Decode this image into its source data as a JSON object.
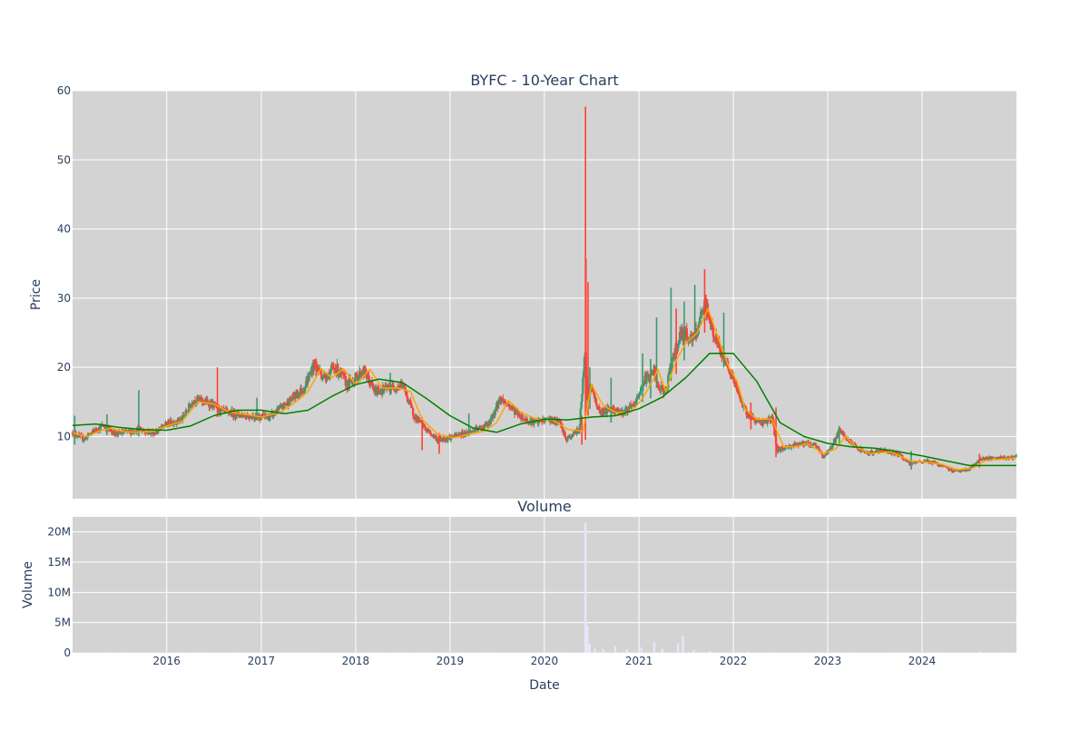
{
  "chart_data": [
    {
      "type": "candlestick",
      "title": "BYFC - 10-Year Chart",
      "ylabel": "Price",
      "xlabel": "",
      "x_range": [
        "2015-01-02",
        "2024-12-31"
      ],
      "ylim": [
        1,
        60
      ],
      "y_ticks": [
        10,
        20,
        30,
        40,
        50,
        60
      ],
      "grid": true,
      "plot_background": "#d3d3d3",
      "up_color": "#3d9970",
      "down_color": "#ff4136",
      "price_path": [
        [
          "2015-01-02",
          10.6
        ],
        [
          "2015-02-15",
          9.6
        ],
        [
          "2015-03-15",
          10.5
        ],
        [
          "2015-05-01",
          11.6
        ],
        [
          "2015-06-15",
          10.4
        ],
        [
          "2015-08-01",
          10.6
        ],
        [
          "2015-09-15",
          11.0
        ],
        [
          "2015-11-15",
          10.5
        ],
        [
          "2016-01-01",
          11.8
        ],
        [
          "2016-03-01",
          12.5
        ],
        [
          "2016-04-15",
          15.4
        ],
        [
          "2016-06-15",
          14.8
        ],
        [
          "2016-08-01",
          13.6
        ],
        [
          "2016-10-01",
          13.2
        ],
        [
          "2016-12-01",
          12.9
        ],
        [
          "2017-02-01",
          12.8
        ],
        [
          "2017-03-15",
          14.0
        ],
        [
          "2017-05-01",
          15.5
        ],
        [
          "2017-06-15",
          17.0
        ],
        [
          "2017-07-25",
          20.5
        ],
        [
          "2017-09-01",
          18.5
        ],
        [
          "2017-10-15",
          20.0
        ],
        [
          "2017-12-01",
          17.5
        ],
        [
          "2018-02-01",
          19.5
        ],
        [
          "2018-03-15",
          16.5
        ],
        [
          "2018-05-15",
          17.0
        ],
        [
          "2018-07-01",
          17.5
        ],
        [
          "2018-08-15",
          13.0
        ],
        [
          "2018-10-01",
          11.0
        ],
        [
          "2018-11-15",
          9.5
        ],
        [
          "2019-01-15",
          10.0
        ],
        [
          "2019-03-01",
          10.5
        ],
        [
          "2019-04-15",
          11.0
        ],
        [
          "2019-06-01",
          11.8
        ],
        [
          "2019-07-15",
          15.5
        ],
        [
          "2019-09-01",
          14.0
        ],
        [
          "2019-10-15",
          12.5
        ],
        [
          "2019-12-01",
          12.0
        ],
        [
          "2020-01-15",
          12.5
        ],
        [
          "2020-03-01",
          12.0
        ],
        [
          "2020-03-25",
          9.5
        ],
        [
          "2020-05-15",
          11.0
        ],
        [
          "2020-06-08",
          23.0
        ],
        [
          "2020-06-12",
          16.0
        ],
        [
          "2020-07-01",
          17.0
        ],
        [
          "2020-08-01",
          13.5
        ],
        [
          "2020-09-15",
          14.0
        ],
        [
          "2020-11-01",
          13.5
        ],
        [
          "2020-12-15",
          14.5
        ],
        [
          "2021-01-20",
          18.0
        ],
        [
          "2021-03-01",
          19.5
        ],
        [
          "2021-03-15",
          17.0
        ],
        [
          "2021-04-15",
          16.5
        ],
        [
          "2021-05-15",
          22.0
        ],
        [
          "2021-06-15",
          25.0
        ],
        [
          "2021-08-01",
          24.0
        ],
        [
          "2021-09-15",
          29.0
        ],
        [
          "2021-10-15",
          25.0
        ],
        [
          "2021-11-15",
          22.0
        ],
        [
          "2021-12-15",
          20.0
        ],
        [
          "2022-02-01",
          15.0
        ],
        [
          "2022-03-01",
          13.0
        ],
        [
          "2022-04-15",
          12.0
        ],
        [
          "2022-06-01",
          12.5
        ],
        [
          "2022-06-20",
          8.0
        ],
        [
          "2022-08-01",
          8.5
        ],
        [
          "2022-09-15",
          9.0
        ],
        [
          "2022-11-15",
          8.8
        ],
        [
          "2022-12-15",
          7.0
        ],
        [
          "2023-01-15",
          8.5
        ],
        [
          "2023-02-15",
          10.8
        ],
        [
          "2023-04-01",
          9.0
        ],
        [
          "2023-06-01",
          7.5
        ],
        [
          "2023-08-01",
          8.0
        ],
        [
          "2023-10-01",
          7.5
        ],
        [
          "2023-11-15",
          6.0
        ],
        [
          "2024-01-15",
          6.5
        ],
        [
          "2024-03-01",
          6.0
        ],
        [
          "2024-05-01",
          5.0
        ],
        [
          "2024-07-01",
          5.2
        ],
        [
          "2024-08-15",
          6.8
        ],
        [
          "2024-10-01",
          6.8
        ],
        [
          "2024-12-31",
          7.0
        ]
      ],
      "price_spikes": [
        [
          "2015-01-10",
          8.8,
          13.0,
          "up"
        ],
        [
          "2015-05-15",
          10.2,
          13.2,
          "up"
        ],
        [
          "2015-09-15",
          10.0,
          16.7,
          "up"
        ],
        [
          "2016-07-15",
          12.8,
          20.0,
          "down"
        ],
        [
          "2016-12-15",
          12.5,
          15.6,
          "up"
        ],
        [
          "2017-08-01",
          18.5,
          21.3,
          "down"
        ],
        [
          "2018-05-15",
          16.0,
          19.2,
          "up"
        ],
        [
          "2018-09-15",
          8.0,
          12.8,
          "down"
        ],
        [
          "2018-11-20",
          7.5,
          10.5,
          "down"
        ],
        [
          "2019-03-15",
          10.0,
          13.3,
          "up"
        ],
        [
          "2020-05-25",
          8.8,
          13.0,
          "down"
        ],
        [
          "2020-06-08",
          9.5,
          57.7,
          "down"
        ],
        [
          "2020-06-10",
          14.0,
          35.7,
          "down"
        ],
        [
          "2020-06-18",
          13.0,
          32.3,
          "down"
        ],
        [
          "2020-06-25",
          14.0,
          20.0,
          "up"
        ],
        [
          "2020-09-15",
          12.0,
          18.5,
          "up"
        ],
        [
          "2021-01-15",
          15.0,
          22.0,
          "up"
        ],
        [
          "2021-02-15",
          15.5,
          21.2,
          "up"
        ],
        [
          "2021-03-10",
          17.0,
          27.2,
          "up"
        ],
        [
          "2021-05-05",
          18.0,
          31.5,
          "up"
        ],
        [
          "2021-05-25",
          19.0,
          28.5,
          "down"
        ],
        [
          "2021-06-25",
          21.0,
          29.5,
          "up"
        ],
        [
          "2021-08-05",
          24.0,
          31.9,
          "up"
        ],
        [
          "2021-09-12",
          25.0,
          34.2,
          "down"
        ],
        [
          "2021-11-25",
          20.0,
          27.9,
          "up"
        ],
        [
          "2022-03-10",
          11.0,
          14.9,
          "down"
        ],
        [
          "2022-06-15",
          7.0,
          14.2,
          "down"
        ],
        [
          "2023-02-15",
          9.0,
          11.5,
          "up"
        ],
        [
          "2023-11-20",
          5.2,
          7.9,
          "up"
        ],
        [
          "2024-08-10",
          5.5,
          7.5,
          "down"
        ]
      ],
      "sma_50_path": [
        [
          "2015-01-02",
          10.5
        ],
        [
          "2015-03-01",
          10.0
        ],
        [
          "2015-04-15",
          10.8
        ],
        [
          "2015-06-01",
          11.2
        ],
        [
          "2015-07-15",
          10.7
        ],
        [
          "2015-09-01",
          10.6
        ],
        [
          "2015-11-01",
          10.7
        ],
        [
          "2016-01-01",
          11.5
        ],
        [
          "2016-03-01",
          12.2
        ],
        [
          "2016-05-01",
          15.0
        ],
        [
          "2016-07-01",
          14.7
        ],
        [
          "2016-09-01",
          13.5
        ],
        [
          "2016-11-01",
          13.2
        ],
        [
          "2017-01-01",
          12.8
        ],
        [
          "2017-03-15",
          13.5
        ],
        [
          "2017-05-15",
          15.0
        ],
        [
          "2017-07-01",
          16.5
        ],
        [
          "2017-08-20",
          19.8
        ],
        [
          "2017-10-01",
          18.5
        ],
        [
          "2017-11-15",
          19.8
        ],
        [
          "2018-01-01",
          17.5
        ],
        [
          "2018-02-25",
          19.7
        ],
        [
          "2018-04-15",
          17.0
        ],
        [
          "2018-06-15",
          17.0
        ],
        [
          "2018-08-01",
          16.5
        ],
        [
          "2018-09-15",
          12.5
        ],
        [
          "2018-11-15",
          10.3
        ],
        [
          "2019-01-15",
          9.8
        ],
        [
          "2019-03-15",
          10.3
        ],
        [
          "2019-05-15",
          10.8
        ],
        [
          "2019-06-30",
          12.0
        ],
        [
          "2019-08-15",
          15.2
        ],
        [
          "2019-10-01",
          13.5
        ],
        [
          "2019-12-01",
          12.5
        ],
        [
          "2020-02-01",
          12.4
        ],
        [
          "2020-04-01",
          11.0
        ],
        [
          "2020-05-30",
          10.8
        ],
        [
          "2020-07-01",
          17.5
        ],
        [
          "2020-08-15",
          14.5
        ],
        [
          "2020-10-01",
          13.5
        ],
        [
          "2020-12-01",
          13.5
        ],
        [
          "2021-01-15",
          15.5
        ],
        [
          "2021-03-01",
          18.5
        ],
        [
          "2021-03-15",
          19.7
        ],
        [
          "2021-04-15",
          16.5
        ],
        [
          "2021-05-25",
          21.0
        ],
        [
          "2021-07-01",
          23.5
        ],
        [
          "2021-08-15",
          25.0
        ],
        [
          "2021-09-25",
          28.5
        ],
        [
          "2021-11-01",
          24.5
        ],
        [
          "2021-12-15",
          20.0
        ],
        [
          "2022-01-15",
          18.0
        ],
        [
          "2022-02-15",
          14.0
        ],
        [
          "2022-04-01",
          12.5
        ],
        [
          "2022-05-30",
          12.5
        ],
        [
          "2022-07-15",
          8.5
        ],
        [
          "2022-09-01",
          8.5
        ],
        [
          "2022-10-15",
          9.0
        ],
        [
          "2022-12-15",
          7.5
        ],
        [
          "2023-02-01",
          8.2
        ],
        [
          "2023-03-10",
          10.0
        ],
        [
          "2023-04-20",
          8.5
        ],
        [
          "2023-06-15",
          7.5
        ],
        [
          "2023-09-01",
          7.8
        ],
        [
          "2023-11-15",
          6.5
        ],
        [
          "2024-01-15",
          6.3
        ],
        [
          "2024-03-15",
          6.0
        ],
        [
          "2024-05-15",
          5.2
        ],
        [
          "2024-07-15",
          5.4
        ],
        [
          "2024-09-01",
          6.5
        ],
        [
          "2024-12-31",
          6.9
        ]
      ],
      "sma_200_path": [
        [
          "2015-01-02",
          11.6
        ],
        [
          "2015-04-01",
          11.8
        ],
        [
          "2015-07-01",
          11.3
        ],
        [
          "2015-10-01",
          11.0
        ],
        [
          "2016-01-01",
          10.9
        ],
        [
          "2016-04-01",
          11.5
        ],
        [
          "2016-07-01",
          13.0
        ],
        [
          "2016-10-01",
          13.8
        ],
        [
          "2017-01-01",
          13.8
        ],
        [
          "2017-04-01",
          13.3
        ],
        [
          "2017-07-01",
          13.8
        ],
        [
          "2017-10-01",
          15.8
        ],
        [
          "2018-01-01",
          17.5
        ],
        [
          "2018-04-01",
          18.3
        ],
        [
          "2018-07-01",
          17.8
        ],
        [
          "2018-10-01",
          15.5
        ],
        [
          "2019-01-01",
          13.0
        ],
        [
          "2019-04-01",
          11.2
        ],
        [
          "2019-07-01",
          10.6
        ],
        [
          "2019-10-01",
          11.8
        ],
        [
          "2020-01-01",
          12.5
        ],
        [
          "2020-04-01",
          12.4
        ],
        [
          "2020-07-01",
          12.8
        ],
        [
          "2020-10-01",
          13.0
        ],
        [
          "2021-01-01",
          14.0
        ],
        [
          "2021-04-01",
          15.7
        ],
        [
          "2021-07-01",
          18.5
        ],
        [
          "2021-10-01",
          22.0
        ],
        [
          "2022-01-01",
          22.0
        ],
        [
          "2022-04-01",
          18.0
        ],
        [
          "2022-07-01",
          12.0
        ],
        [
          "2022-10-01",
          10.0
        ],
        [
          "2023-01-01",
          9.0
        ],
        [
          "2023-04-01",
          8.5
        ],
        [
          "2023-07-01",
          8.3
        ],
        [
          "2023-10-01",
          7.8
        ],
        [
          "2024-01-01",
          7.2
        ],
        [
          "2024-04-01",
          6.5
        ],
        [
          "2024-07-01",
          5.8
        ],
        [
          "2024-12-31",
          5.8
        ]
      ]
    },
    {
      "type": "bar",
      "title": "Volume",
      "ylabel": "Volume",
      "xlabel": "Date",
      "x_range": [
        "2015-01-02",
        "2024-12-31"
      ],
      "x_ticks": [
        "2016-01-01",
        "2017-01-01",
        "2018-01-01",
        "2019-01-01",
        "2020-01-01",
        "2021-01-01",
        "2022-01-01",
        "2023-01-01",
        "2024-01-01"
      ],
      "x_tick_labels": [
        "2016",
        "2017",
        "2018",
        "2019",
        "2020",
        "2021",
        "2022",
        "2023",
        "2024"
      ],
      "ylim": [
        0,
        22500000
      ],
      "y_ticks": [
        0,
        5000000,
        10000000,
        15000000,
        20000000
      ],
      "y_tick_labels": [
        "0",
        "5M",
        "10M",
        "15M",
        "20M"
      ],
      "grid": true,
      "bar_color": "#e6e6fa",
      "baseline_volume": 50000,
      "volume_spikes": [
        [
          "2020-06-08",
          21500000
        ],
        [
          "2020-06-10",
          5000000
        ],
        [
          "2020-06-16",
          4500000
        ],
        [
          "2020-06-24",
          1500000
        ],
        [
          "2020-07-15",
          700000
        ],
        [
          "2020-08-15",
          600000
        ],
        [
          "2020-10-01",
          1100000
        ],
        [
          "2020-11-15",
          600000
        ],
        [
          "2021-01-10",
          900000
        ],
        [
          "2021-03-01",
          1800000
        ],
        [
          "2021-04-01",
          700000
        ],
        [
          "2021-06-01",
          1600000
        ],
        [
          "2021-06-20",
          2800000
        ],
        [
          "2021-08-01",
          500000
        ],
        [
          "2021-10-01",
          300000
        ],
        [
          "2022-03-01",
          200000
        ],
        [
          "2024-08-10",
          200000
        ]
      ]
    }
  ]
}
